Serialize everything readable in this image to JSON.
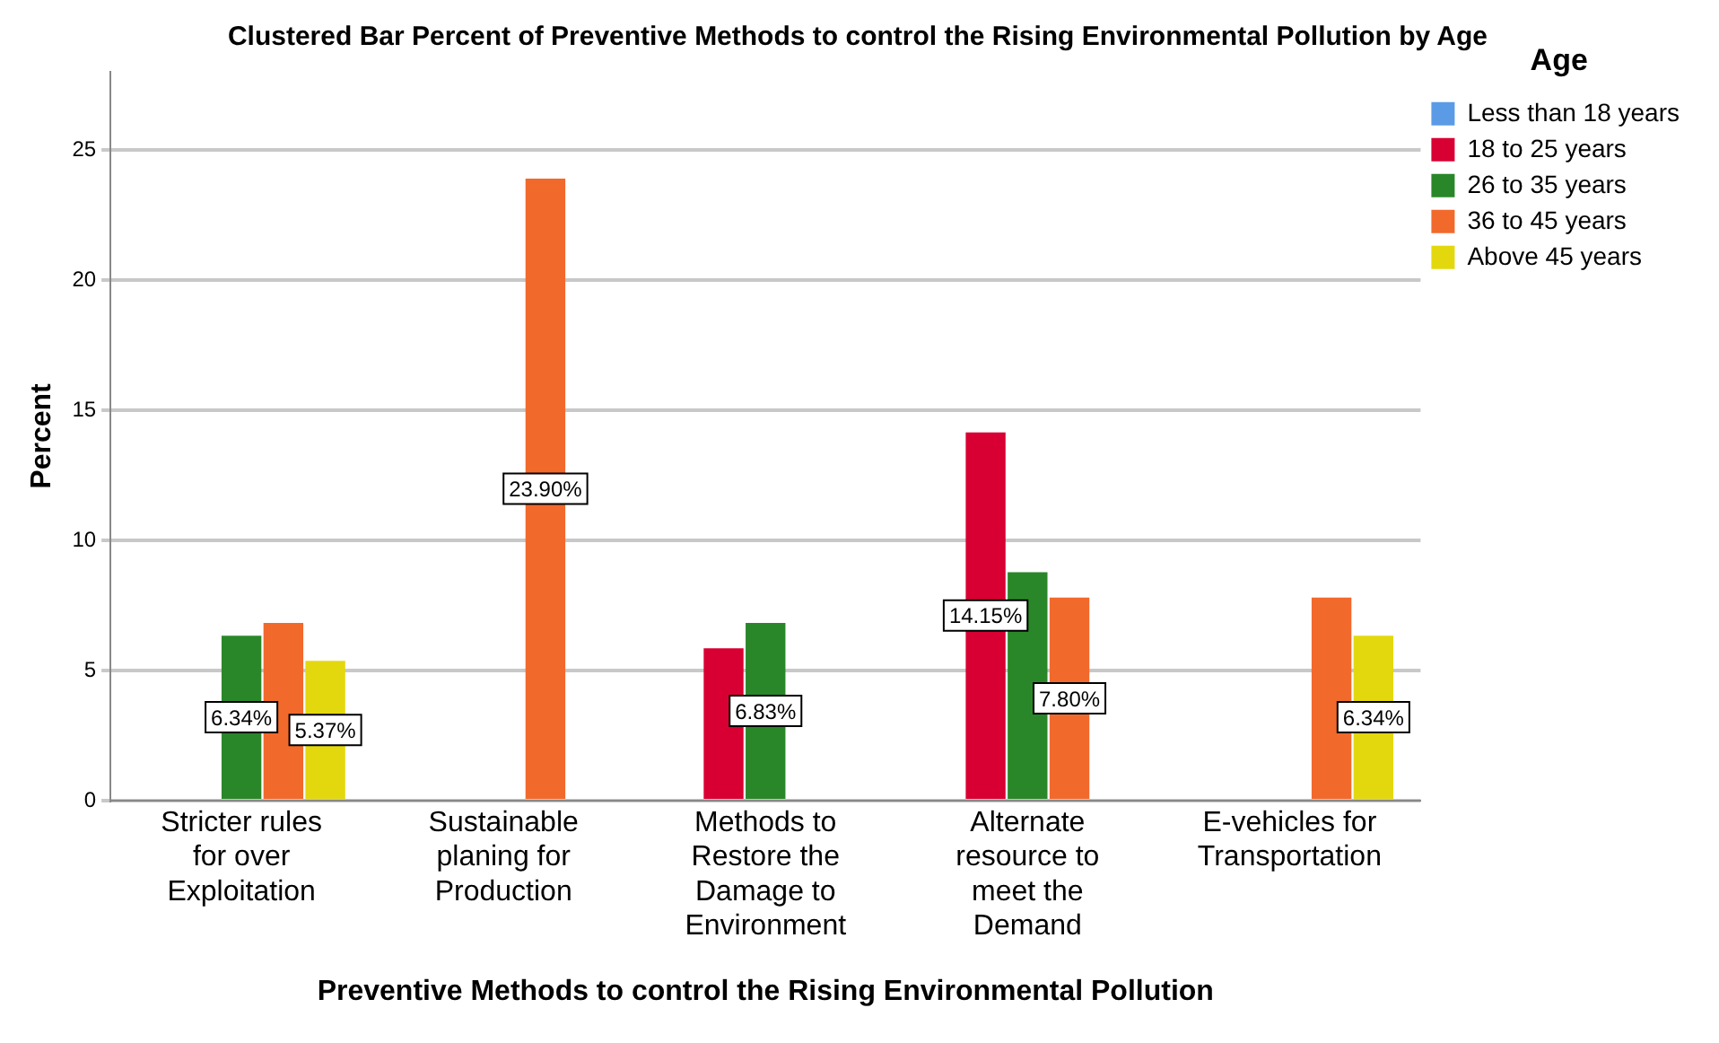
{
  "chart_data": {
    "type": "bar",
    "title": "Clustered Bar Percent of Preventive Methods to control the Rising Environmental Pollution by Age",
    "xlabel": "Preventive Methods to control the Rising Environmental Pollution",
    "ylabel": "Percent",
    "legend_title": "Age",
    "categories": [
      "Stricter rules for over Exploitation",
      "Sustainable planing for Production",
      "Methods to Restore the Damage to Environment",
      "Alternate resource to meet the Demand",
      "E-vehicles for Transportation"
    ],
    "series": [
      {
        "name": "Less than 18 years",
        "color": "#5b9be6",
        "values": [
          null,
          null,
          null,
          null,
          null
        ]
      },
      {
        "name": "18 to 25 years",
        "color": "#d80032",
        "values": [
          null,
          null,
          5.85,
          14.15,
          null
        ],
        "value_labels": [
          null,
          null,
          null,
          "14.15%",
          null
        ]
      },
      {
        "name": "26 to 35 years",
        "color": "#2a8729",
        "values": [
          6.34,
          null,
          6.83,
          8.78,
          null
        ],
        "value_labels": [
          "6.34%",
          null,
          "6.83%",
          null,
          null
        ]
      },
      {
        "name": "36 to 45 years",
        "color": "#f2692c",
        "values": [
          6.83,
          23.9,
          null,
          7.8,
          7.8
        ],
        "value_labels": [
          null,
          "23.90%",
          null,
          "7.80%",
          null
        ]
      },
      {
        "name": "Above 45 years",
        "color": "#e3d80e",
        "values": [
          5.37,
          null,
          null,
          null,
          6.34
        ],
        "value_labels": [
          "5.37%",
          null,
          null,
          null,
          "6.34%"
        ]
      }
    ],
    "ylim": [
      0,
      28
    ],
    "yticks": [
      0,
      5,
      10,
      15,
      20,
      25
    ],
    "grid": "y",
    "legend": "top right"
  }
}
